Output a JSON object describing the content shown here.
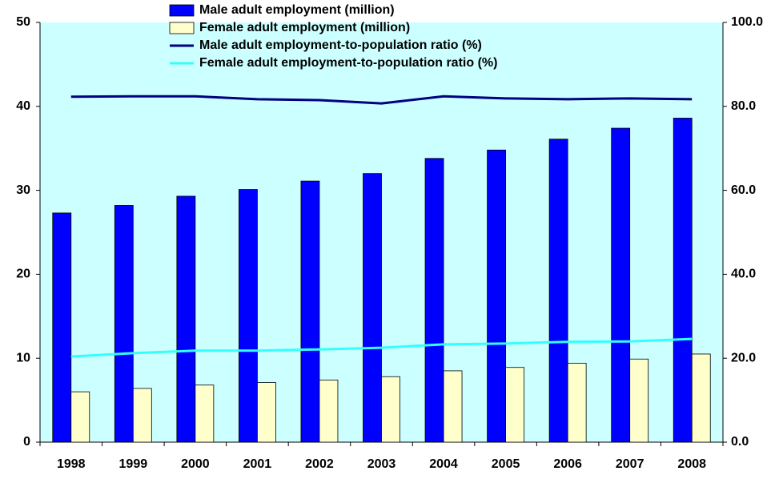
{
  "chart_data": {
    "type": "bar",
    "categories": [
      "1998",
      "1999",
      "2000",
      "2001",
      "2002",
      "2003",
      "2004",
      "2005",
      "2006",
      "2007",
      "2008"
    ],
    "series": [
      {
        "name": "Male adult employment (million)",
        "type": "bar",
        "color": "#0000ff",
        "values": [
          27.3,
          28.2,
          29.3,
          30.1,
          31.1,
          32.0,
          33.8,
          34.8,
          36.1,
          37.4,
          38.6
        ]
      },
      {
        "name": "Female adult employment (million)",
        "type": "bar",
        "color": "#ffffcc",
        "values": [
          6.0,
          6.4,
          6.8,
          7.1,
          7.4,
          7.8,
          8.5,
          8.9,
          9.4,
          9.9,
          10.5
        ]
      },
      {
        "name": "Male adult employment-to-population ratio (%)",
        "type": "line",
        "axis": "y2",
        "color": "#000080",
        "values": [
          82.3,
          82.4,
          82.4,
          81.7,
          81.5,
          80.7,
          82.4,
          81.9,
          81.7,
          81.9,
          81.7
        ]
      },
      {
        "name": "Female adult employment-to-population ratio (%)",
        "type": "line",
        "axis": "y2",
        "color": "#33ffff",
        "values": [
          20.4,
          21.2,
          21.8,
          21.8,
          22.1,
          22.5,
          23.3,
          23.5,
          23.9,
          24.0,
          24.6
        ]
      }
    ],
    "ylim": [
      0,
      50
    ],
    "yticks": [
      0,
      10,
      20,
      30,
      40,
      50
    ],
    "y2lim": [
      0,
      100
    ],
    "y2ticks": [
      {
        "value": 0,
        "label": "0.0"
      },
      {
        "value": 20,
        "label": "20.0"
      },
      {
        "value": 40,
        "label": "40.0"
      },
      {
        "value": 60,
        "label": "60.0"
      },
      {
        "value": 80,
        "label": "80.0"
      },
      {
        "value": 100,
        "label": "100.0"
      }
    ],
    "grid": false,
    "legend": "top"
  }
}
